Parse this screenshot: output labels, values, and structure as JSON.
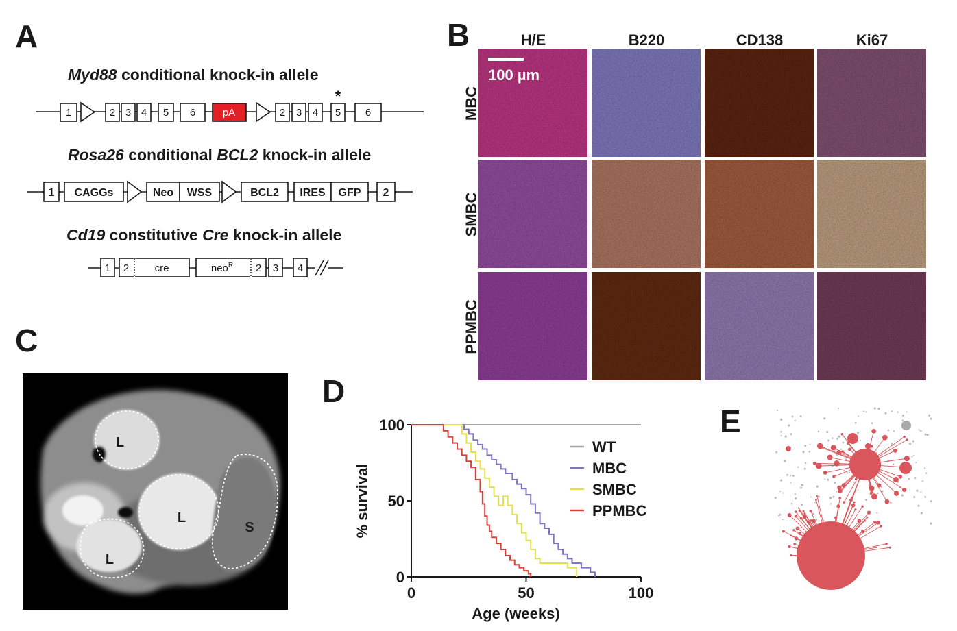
{
  "panels": {
    "a": "A",
    "b": "B",
    "c": "C",
    "d": "D",
    "e": "E"
  },
  "panel_a": {
    "allele1": {
      "gene": "Myd88",
      "rest": " conditional knock-in allele",
      "boxes": [
        "1",
        "2",
        "3",
        "4",
        "5",
        "6",
        "pA",
        "2",
        "3",
        "4",
        "5",
        "6"
      ],
      "star": "*"
    },
    "allele2": {
      "gene": "Rosa26",
      "mid": " conditional ",
      "gene2": "BCL2",
      "rest": " knock-in allele",
      "boxes": [
        "1",
        "CAGGs",
        "Neo",
        "WSS",
        "BCL2",
        "IRES",
        "GFP",
        "2"
      ]
    },
    "allele3": {
      "gene": "Cd19",
      "mid": " constitutive ",
      "gene2": "Cre",
      "rest": " knock-in allele",
      "boxes": [
        "1",
        "2",
        "cre",
        "neo",
        "R",
        "2",
        "3",
        "4"
      ]
    }
  },
  "panel_b": {
    "columns": [
      "H/E",
      "B220",
      "CD138",
      "Ki67"
    ],
    "rows": [
      "MBC",
      "SMBC",
      "PPMBC"
    ],
    "scale_label": "100 µm",
    "tile_colors": [
      [
        "#b7357f",
        "#7b76b8",
        "#5a2413",
        "#7d4f6e"
      ],
      [
        "#8e4c9a",
        "#a8735f",
        "#9c5a3d",
        "#b79a7c"
      ],
      [
        "#8a3d93",
        "#5e2a14",
        "#8c77ab",
        "#6e3a56"
      ]
    ]
  },
  "panel_c": {
    "labels": [
      "L",
      "L",
      "L",
      "S"
    ]
  },
  "chart_data": {
    "type": "line",
    "subtype": "kaplan-meier-step",
    "xlabel": "Age (weeks)",
    "ylabel": "% survival",
    "xlim": [
      0,
      100
    ],
    "ylim": [
      0,
      100
    ],
    "xticks": [
      "0",
      "50",
      "100"
    ],
    "yticks": [
      "0",
      "50",
      "100"
    ],
    "legend_position": "top-right",
    "series": [
      {
        "name": "WT",
        "color": "#a6a6a6",
        "x": [
          0,
          100
        ],
        "y": [
          100,
          100
        ]
      },
      {
        "name": "MBC",
        "color": "#7b74c2",
        "x": [
          0,
          20,
          23,
          25,
          27,
          29,
          31,
          33,
          35,
          37,
          39,
          41,
          44,
          46,
          48,
          50,
          52,
          54,
          56,
          58,
          60,
          62,
          64,
          66,
          68,
          70,
          72,
          74,
          76,
          78,
          80
        ],
        "y": [
          100,
          100,
          97,
          94,
          90,
          87,
          84,
          80,
          77,
          74,
          71,
          68,
          64,
          61,
          58,
          54,
          48,
          42,
          35,
          32,
          28,
          22,
          18,
          15,
          12,
          9,
          9,
          6,
          6,
          3,
          0
        ]
      },
      {
        "name": "SMBC",
        "color": "#e4e04a",
        "x": [
          0,
          20,
          22,
          24,
          26,
          28,
          30,
          32,
          34,
          36,
          38,
          40,
          42,
          44,
          46,
          48,
          50,
          52,
          54,
          56,
          60,
          64,
          68,
          72
        ],
        "y": [
          100,
          100,
          94,
          88,
          82,
          76,
          71,
          65,
          59,
          53,
          47,
          53,
          47,
          41,
          35,
          29,
          24,
          18,
          12,
          9,
          9,
          9,
          6,
          0
        ]
      },
      {
        "name": "PPMBC",
        "color": "#d9403a",
        "x": [
          0,
          12,
          14,
          16,
          18,
          20,
          22,
          24,
          26,
          28,
          30,
          31,
          32,
          33,
          34,
          35,
          37,
          39,
          41,
          43,
          45,
          47,
          49,
          51,
          52
        ],
        "y": [
          100,
          100,
          96,
          92,
          88,
          84,
          80,
          76,
          72,
          64,
          56,
          48,
          40,
          34,
          30,
          26,
          22,
          18,
          14,
          11,
          8,
          6,
          4,
          2,
          0
        ]
      }
    ]
  },
  "panel_e": {
    "node_color": "#d9575c",
    "edge_color": "#bcbcbc"
  }
}
